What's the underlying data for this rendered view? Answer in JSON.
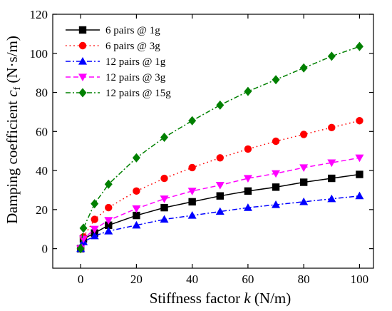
{
  "chart_data": {
    "type": "line",
    "xlabel_main": "Stiffness factor ",
    "xlabel_var": "k",
    "xlabel_unit": " (N/m)",
    "ylabel_main": "Damping coefficient ",
    "ylabel_var": "c",
    "ylabel_sub": "f",
    "ylabel_unit": " (N·s/m)",
    "xlim": [
      -10,
      105
    ],
    "ylim": [
      -10,
      120
    ],
    "x_ticks": [
      0,
      20,
      40,
      60,
      80,
      100
    ],
    "y_ticks": [
      0,
      20,
      40,
      60,
      80,
      100,
      120
    ],
    "legend_position": "top-left",
    "grid": false,
    "x": [
      0,
      1,
      5,
      10,
      20,
      30,
      40,
      50,
      60,
      70,
      80,
      90,
      100
    ],
    "series": [
      {
        "name": "6 pairs @ 1g",
        "color": "#000000",
        "marker": "square",
        "dash": "solid",
        "values": [
          0,
          5,
          8,
          12,
          17,
          21,
          24,
          27,
          29.5,
          31.5,
          34,
          36,
          38
        ]
      },
      {
        "name": "6 pairs @ 3g",
        "color": "#ff0000",
        "marker": "circle",
        "dash": "dot",
        "values": [
          0,
          6,
          15,
          21,
          29.5,
          36,
          41.5,
          46.5,
          51,
          55,
          58.5,
          62,
          65.5
        ]
      },
      {
        "name": "12 pairs @ 1g",
        "color": "#0000ff",
        "marker": "triangle-up",
        "dash": "dashdot",
        "values": [
          0,
          3.5,
          6.5,
          9,
          12,
          15,
          17,
          19,
          21,
          22.5,
          24,
          25.5,
          27
        ]
      },
      {
        "name": "12 pairs @ 3g",
        "color": "#ff00ff",
        "marker": "triangle-down",
        "dash": "dash",
        "values": [
          0,
          5,
          10,
          14.5,
          20.5,
          25.5,
          29.5,
          32.5,
          36,
          38.5,
          41.5,
          44,
          46.5
        ]
      },
      {
        "name": "12 pairs @ 15g",
        "color": "#008000",
        "marker": "diamond",
        "dash": "dashdot",
        "values": [
          0,
          10.5,
          23,
          33,
          46.5,
          57,
          65.5,
          73.5,
          80.5,
          86.5,
          92.5,
          98.5,
          103.5
        ]
      }
    ]
  }
}
